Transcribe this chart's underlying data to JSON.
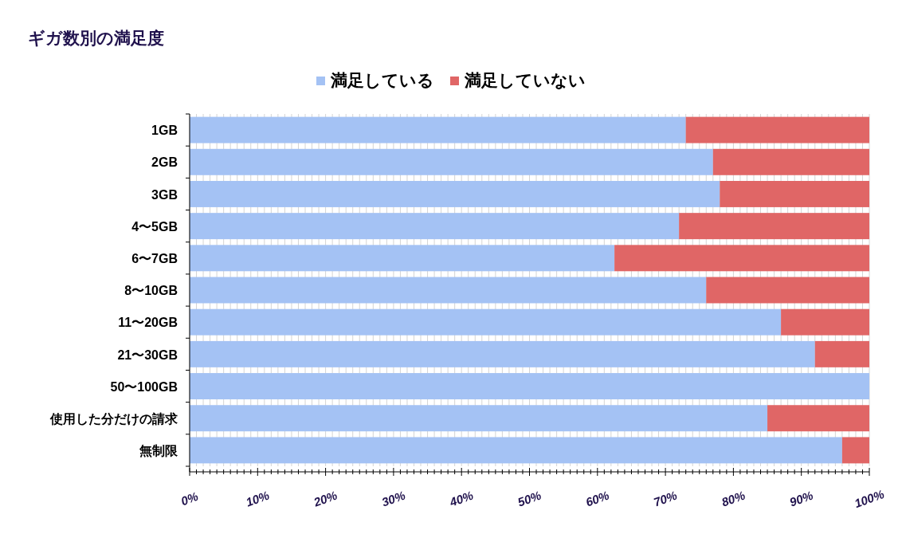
{
  "chart_data": {
    "type": "bar",
    "orientation": "horizontal",
    "stacked": true,
    "title": "ギガ数別の満足度",
    "categories": [
      "1GB",
      "2GB",
      "3GB",
      "4〜5GB",
      "6〜7GB",
      "8〜10GB",
      "11〜20GB",
      "21〜30GB",
      "50〜100GB",
      "使用した分だけの請求",
      "無制限"
    ],
    "series": [
      {
        "name": "満足している",
        "color": "#a4c2f4",
        "values": [
          73,
          77,
          78,
          72,
          62.5,
          76,
          87,
          92,
          100,
          85,
          96
        ]
      },
      {
        "name": "満足していない",
        "color": "#e06666",
        "values": [
          27,
          23,
          22,
          28,
          37.5,
          24,
          13,
          8,
          0,
          15,
          4
        ]
      }
    ],
    "xlim": [
      0,
      100
    ],
    "xticks": [
      {
        "value": 0,
        "label": "0%"
      },
      {
        "value": 1,
        "label": null
      },
      {
        "value": 2,
        "label": null
      },
      {
        "value": 3,
        "label": null
      },
      {
        "value": 4,
        "label": null
      },
      {
        "value": 5,
        "label": null
      },
      {
        "value": 6,
        "label": null
      },
      {
        "value": 7,
        "label": null
      },
      {
        "value": 8,
        "label": null
      },
      {
        "value": 9,
        "label": null
      },
      {
        "value": 10,
        "label": "10%"
      },
      {
        "value": 11,
        "label": null
      },
      {
        "value": 12,
        "label": null
      },
      {
        "value": 13,
        "label": null
      },
      {
        "value": 14,
        "label": null
      },
      {
        "value": 15,
        "label": null
      },
      {
        "value": 16,
        "label": null
      },
      {
        "value": 17,
        "label": null
      },
      {
        "value": 18,
        "label": null
      },
      {
        "value": 19,
        "label": null
      },
      {
        "value": 20,
        "label": "20%"
      },
      {
        "value": 21,
        "label": null
      },
      {
        "value": 22,
        "label": null
      },
      {
        "value": 23,
        "label": null
      },
      {
        "value": 24,
        "label": null
      },
      {
        "value": 25,
        "label": null
      },
      {
        "value": 26,
        "label": null
      },
      {
        "value": 27,
        "label": null
      },
      {
        "value": 28,
        "label": null
      },
      {
        "value": 29,
        "label": null
      },
      {
        "value": 30,
        "label": "30%"
      },
      {
        "value": 31,
        "label": null
      },
      {
        "value": 32,
        "label": null
      },
      {
        "value": 33,
        "label": null
      },
      {
        "value": 34,
        "label": null
      },
      {
        "value": 35,
        "label": null
      },
      {
        "value": 36,
        "label": null
      },
      {
        "value": 37,
        "label": null
      },
      {
        "value": 38,
        "label": null
      },
      {
        "value": 39,
        "label": null
      },
      {
        "value": 40,
        "label": "40%"
      },
      {
        "value": 41,
        "label": null
      },
      {
        "value": 42,
        "label": null
      },
      {
        "value": 43,
        "label": null
      },
      {
        "value": 44,
        "label": null
      },
      {
        "value": 45,
        "label": null
      },
      {
        "value": 46,
        "label": null
      },
      {
        "value": 47,
        "label": null
      },
      {
        "value": 48,
        "label": null
      },
      {
        "value": 49,
        "label": null
      },
      {
        "value": 50,
        "label": "50%"
      },
      {
        "value": 51,
        "label": null
      },
      {
        "value": 52,
        "label": null
      },
      {
        "value": 53,
        "label": null
      },
      {
        "value": 54,
        "label": null
      },
      {
        "value": 55,
        "label": null
      },
      {
        "value": 56,
        "label": null
      },
      {
        "value": 57,
        "label": null
      },
      {
        "value": 58,
        "label": null
      },
      {
        "value": 59,
        "label": null
      },
      {
        "value": 60,
        "label": "60%"
      },
      {
        "value": 61,
        "label": null
      },
      {
        "value": 62,
        "label": null
      },
      {
        "value": 63,
        "label": null
      },
      {
        "value": 64,
        "label": null
      },
      {
        "value": 65,
        "label": null
      },
      {
        "value": 66,
        "label": null
      },
      {
        "value": 67,
        "label": null
      },
      {
        "value": 68,
        "label": null
      },
      {
        "value": 69,
        "label": null
      },
      {
        "value": 70,
        "label": "70%"
      },
      {
        "value": 71,
        "label": null
      },
      {
        "value": 72,
        "label": null
      },
      {
        "value": 73,
        "label": null
      },
      {
        "value": 74,
        "label": null
      },
      {
        "value": 75,
        "label": null
      },
      {
        "value": 76,
        "label": null
      },
      {
        "value": 77,
        "label": null
      },
      {
        "value": 78,
        "label": null
      },
      {
        "value": 79,
        "label": null
      },
      {
        "value": 80,
        "label": "80%"
      },
      {
        "value": 81,
        "label": null
      },
      {
        "value": 82,
        "label": null
      },
      {
        "value": 83,
        "label": null
      },
      {
        "value": 84,
        "label": null
      },
      {
        "value": 85,
        "label": null
      },
      {
        "value": 86,
        "label": null
      },
      {
        "value": 87,
        "label": null
      },
      {
        "value": 88,
        "label": null
      },
      {
        "value": 89,
        "label": null
      },
      {
        "value": 90,
        "label": "90%"
      },
      {
        "value": 91,
        "label": null
      },
      {
        "value": 92,
        "label": null
      },
      {
        "value": 93,
        "label": null
      },
      {
        "value": 94,
        "label": null
      },
      {
        "value": 95,
        "label": null
      },
      {
        "value": 96,
        "label": null
      },
      {
        "value": 97,
        "label": null
      },
      {
        "value": 98,
        "label": null
      },
      {
        "value": 99,
        "label": null
      },
      {
        "value": 100,
        "label": "100%"
      }
    ],
    "grid": "x",
    "legend": "top"
  }
}
